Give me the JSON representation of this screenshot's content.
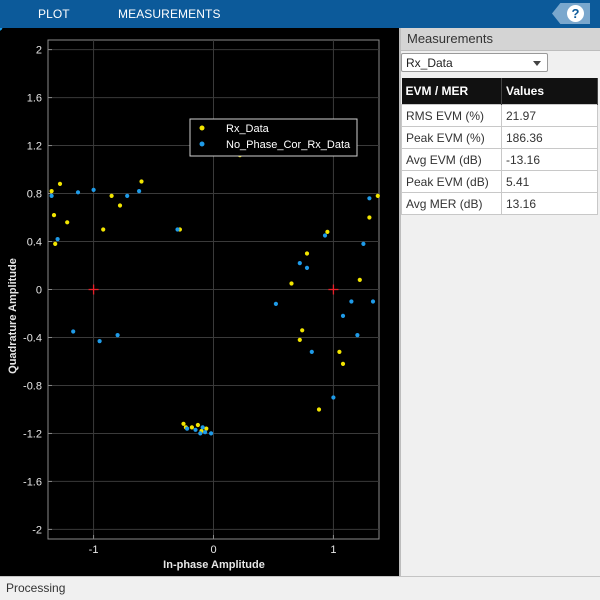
{
  "toolstrip": {
    "tabs": [
      {
        "label": "PLOT"
      },
      {
        "label": "MEASUREMENTS"
      }
    ],
    "help_icon": "help-icon",
    "help_label": "?"
  },
  "plot": {
    "xlabel": "In-phase Amplitude",
    "ylabel": "Quadrature Amplitude",
    "x_ticks": [
      "-1",
      "0",
      "1"
    ],
    "y_ticks": [
      "2",
      "1.6",
      "1.2",
      "0.8",
      "0.4",
      "0",
      "-0.4",
      "-0.8",
      "-1.2",
      "-1.6",
      "-2"
    ],
    "legend": [
      "Rx_Data",
      "No_Phase_Cor_Rx_Data"
    ]
  },
  "chart_data": {
    "type": "scatter",
    "xlabel": "In-phase Amplitude",
    "ylabel": "Quadrature Amplitude",
    "xlim": [
      -1.38,
      1.38
    ],
    "ylim": [
      -2.08,
      2.08
    ],
    "grid": true,
    "legend_position": "top-right",
    "reference_points": [
      [
        -1,
        0
      ],
      [
        1,
        0
      ]
    ],
    "reference_color": "#e8202a",
    "series": [
      {
        "name": "Rx_Data",
        "color": "#f2e500",
        "clusters": [
          {
            "center": [
              -1,
              0
            ],
            "spread": 0.19
          },
          {
            "center": [
              1,
              0
            ],
            "spread": 0.19
          }
        ],
        "points": [
          [
            -1.28,
            0.88
          ],
          [
            -1.35,
            0.82
          ],
          [
            -1.22,
            0.56
          ],
          [
            -0.85,
            0.78
          ],
          [
            -0.78,
            0.7
          ],
          [
            -1.32,
            0.38
          ],
          [
            -0.92,
            0.5
          ],
          [
            -0.6,
            0.9
          ],
          [
            -1.33,
            0.62
          ],
          [
            -0.25,
            -1.12
          ],
          [
            -0.23,
            -1.15
          ],
          [
            -0.18,
            -1.15
          ],
          [
            -0.13,
            -1.13
          ],
          [
            -0.1,
            -1.18
          ],
          [
            -0.06,
            -1.16
          ],
          [
            -0.28,
            0.5
          ],
          [
            0.22,
            1.12
          ],
          [
            0.78,
            0.3
          ],
          [
            0.74,
            -0.34
          ],
          [
            0.72,
            -0.42
          ],
          [
            1.05,
            -0.52
          ],
          [
            1.08,
            -0.62
          ],
          [
            0.88,
            -1.0
          ],
          [
            1.3,
            0.6
          ],
          [
            1.37,
            0.78
          ],
          [
            0.65,
            0.05
          ],
          [
            1.22,
            0.08
          ],
          [
            0.95,
            0.48
          ]
        ]
      },
      {
        "name": "No_Phase_Cor_Rx_Data",
        "color": "#1f9be8",
        "clusters": [
          {
            "center": [
              -1,
              0
            ],
            "spread": 0.14
          },
          {
            "center": [
              1,
              0
            ],
            "spread": 0.14
          }
        ],
        "points": [
          [
            -1.35,
            0.78
          ],
          [
            -1.3,
            0.42
          ],
          [
            -1.13,
            0.81
          ],
          [
            -1.0,
            0.83
          ],
          [
            -0.72,
            0.78
          ],
          [
            -0.3,
            0.5
          ],
          [
            -0.62,
            0.82
          ],
          [
            -0.95,
            -0.43
          ],
          [
            -1.17,
            -0.35
          ],
          [
            -0.8,
            -0.38
          ],
          [
            -0.22,
            -1.16
          ],
          [
            -0.15,
            -1.17
          ],
          [
            -0.11,
            -1.2
          ],
          [
            -0.07,
            -1.19
          ],
          [
            -0.02,
            -1.2
          ],
          [
            -0.09,
            -1.15
          ],
          [
            0.52,
            -0.12
          ],
          [
            0.72,
            0.22
          ],
          [
            1.0,
            -0.9
          ],
          [
            1.15,
            -0.1
          ],
          [
            1.3,
            0.76
          ],
          [
            1.25,
            0.38
          ],
          [
            1.33,
            -0.1
          ],
          [
            0.93,
            0.45
          ],
          [
            0.78,
            0.18
          ],
          [
            1.08,
            -0.22
          ],
          [
            1.2,
            -0.38
          ],
          [
            0.82,
            -0.52
          ]
        ]
      }
    ]
  },
  "measurements_panel": {
    "title": "Measurements",
    "signal_select": {
      "selected": "Rx_Data"
    },
    "table": {
      "headers": [
        "EVM / MER",
        "Values"
      ],
      "rows": [
        [
          "RMS EVM (%)",
          "21.97"
        ],
        [
          "Peak EVM (%)",
          "186.36"
        ],
        [
          "Avg EVM (dB)",
          "-13.16"
        ],
        [
          "Peak EVM (dB)",
          "5.41"
        ],
        [
          "Avg MER (dB)",
          "13.16"
        ]
      ]
    }
  },
  "status": {
    "text": "Processing"
  }
}
